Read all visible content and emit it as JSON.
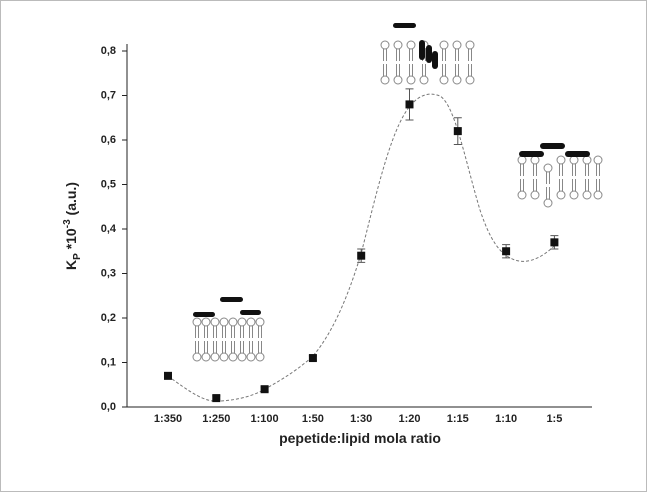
{
  "chart_data": {
    "type": "scatter",
    "x_label": "pepetide:lipid mola ratio",
    "y_label": {
      "base": "K",
      "sub": "P",
      "mid": " *10",
      "sup": "-3",
      "end": " (a.u.)"
    },
    "categories": [
      "1:350",
      "1:250",
      "1:100",
      "1:50",
      "1:30",
      "1:20",
      "1:15",
      "1:10",
      "1:5"
    ],
    "values": [
      0.07,
      0.02,
      0.04,
      0.11,
      0.34,
      0.68,
      0.62,
      0.35,
      0.37
    ],
    "errors": [
      0.005,
      0.005,
      0.005,
      0.005,
      0.015,
      0.035,
      0.03,
      0.015,
      0.015
    ],
    "color": "#111111",
    "ylim": [
      0,
      0.8
    ],
    "yticks": [
      {
        "value": 0,
        "label": "0,0"
      },
      {
        "value": 0.1,
        "label": "0,1"
      },
      {
        "value": 0.2,
        "label": "0,2"
      },
      {
        "value": 0.3,
        "label": "0,3"
      },
      {
        "value": 0.4,
        "label": "0,4"
      },
      {
        "value": 0.5,
        "label": "0,5"
      },
      {
        "value": 0.6,
        "label": "0,6"
      },
      {
        "value": 0.7,
        "label": "0,7"
      },
      {
        "value": 0.8,
        "label": "0,8"
      }
    ]
  }
}
